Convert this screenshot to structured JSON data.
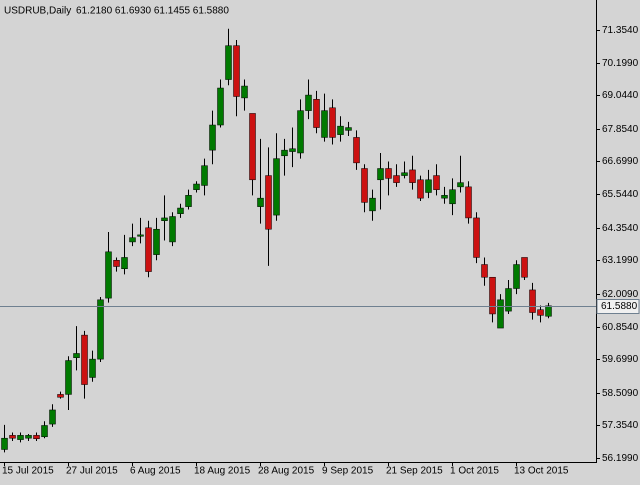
{
  "chart_data": {
    "type": "candlestick",
    "title": "USDRUB,Daily",
    "subtitle": "61.2180 61.6930 61.1455 61.5880",
    "categories": [
      "15 Jul 2015",
      null,
      null,
      null,
      null,
      null,
      null,
      null,
      "27 Jul 2015",
      null,
      null,
      null,
      null,
      null,
      null,
      null,
      "6 Aug 2015",
      null,
      null,
      null,
      null,
      null,
      null,
      null,
      "18 Aug 2015",
      null,
      null,
      null,
      null,
      null,
      null,
      null,
      "28 Aug 2015",
      null,
      null,
      null,
      null,
      null,
      null,
      null,
      "9 Sep 2015",
      null,
      null,
      null,
      null,
      null,
      null,
      null,
      "21 Sep 2015",
      null,
      null,
      null,
      null,
      null,
      null,
      null,
      "1 Oct 2015",
      null,
      null,
      null,
      null,
      null,
      null,
      null,
      "13 Oct 2015",
      null,
      null,
      null,
      null
    ],
    "open": [
      56.5,
      57.0,
      56.85,
      56.9,
      57.0,
      56.95,
      57.4,
      58.45,
      58.45,
      59.75,
      60.55,
      59.05,
      59.7,
      61.86,
      63.2,
      62.9,
      63.85,
      64.05,
      64.35,
      63.4,
      64.6,
      63.85,
      64.85,
      65.1,
      65.7,
      65.85,
      67.1,
      67.99,
      69.6,
      70.8,
      68.95,
      68.4,
      65.1,
      66.2,
      64.8,
      66.9,
      67.05,
      67.0,
      68.5,
      68.9,
      67.55,
      68.6,
      67.65,
      67.8,
      67.55,
      66.45,
      64.95,
      66.05,
      66.45,
      66.2,
      66.2,
      66.4,
      66.05,
      65.6,
      66.2,
      65.4,
      65.2,
      65.8,
      65.8,
      64.7,
      63.05,
      62.6,
      60.8,
      61.4,
      62.2,
      63.3,
      62.15,
      61.45,
      61.218
    ],
    "high": [
      57.37,
      57.1,
      57.1,
      57.05,
      57.1,
      57.5,
      58.1,
      58.55,
      59.8,
      60.87,
      60.7,
      60.0,
      61.9,
      64.2,
      63.3,
      64.1,
      64.5,
      64.7,
      64.6,
      64.7,
      65.5,
      64.9,
      65.2,
      65.7,
      66.0,
      66.8,
      68.5,
      69.6,
      71.4,
      71.0,
      69.6,
      68.4,
      67.5,
      67.2,
      67.7,
      67.5,
      67.9,
      68.9,
      69.6,
      69.2,
      69.1,
      68.9,
      68.3,
      68.1,
      67.8,
      66.6,
      65.7,
      67.0,
      66.7,
      66.6,
      66.7,
      66.9,
      66.2,
      66.4,
      66.6,
      65.8,
      66.1,
      66.9,
      66.0,
      64.9,
      63.3,
      62.6,
      62.0,
      62.5,
      63.2,
      63.3,
      62.4,
      61.6,
      61.693
    ],
    "low": [
      56.4,
      56.8,
      56.75,
      56.8,
      56.8,
      56.9,
      57.3,
      58.3,
      57.9,
      59.3,
      58.3,
      58.9,
      59.6,
      61.7,
      62.8,
      62.7,
      63.7,
      63.8,
      62.6,
      63.2,
      63.9,
      63.7,
      64.7,
      65.0,
      65.6,
      65.5,
      66.6,
      67.9,
      69.4,
      68.3,
      68.5,
      65.5,
      64.5,
      63.0,
      64.6,
      66.2,
      66.5,
      66.8,
      68.2,
      67.7,
      67.4,
      67.3,
      67.4,
      67.6,
      66.4,
      64.9,
      64.6,
      65.0,
      65.5,
      65.8,
      66.1,
      65.7,
      65.3,
      65.4,
      65.5,
      65.2,
      64.8,
      65.6,
      64.5,
      63.1,
      62.3,
      61.0,
      60.8,
      61.3,
      62.0,
      62.5,
      61.1,
      61.0,
      61.1455
    ],
    "close": [
      56.9,
      56.9,
      57.0,
      57.0,
      56.88,
      57.35,
      57.9,
      58.35,
      59.65,
      59.9,
      58.8,
      59.7,
      61.8,
      63.5,
      62.98,
      63.3,
      64.0,
      64.1,
      62.8,
      64.3,
      64.7,
      64.75,
      65.05,
      65.5,
      65.9,
      66.55,
      67.99,
      69.3,
      70.8,
      69.0,
      69.37,
      66.05,
      65.4,
      64.3,
      66.8,
      67.1,
      67.15,
      68.5,
      69.05,
      67.9,
      68.5,
      67.55,
      67.95,
      67.9,
      66.65,
      65.25,
      65.4,
      66.45,
      66.1,
      65.95,
      66.3,
      65.95,
      65.4,
      66.05,
      65.7,
      65.5,
      65.7,
      65.95,
      64.7,
      63.3,
      62.6,
      61.3,
      61.8,
      62.2,
      63.05,
      62.6,
      61.35,
      61.25,
      61.588
    ],
    "up_color": "#007a00",
    "down_color": "#cc1111",
    "ylim": [
      56.057,
      72.417
    ],
    "yticks": [
      {
        "value": 56.199,
        "label": "56.1990"
      },
      {
        "value": 57.354,
        "label": "57.3540"
      },
      {
        "value": 58.509,
        "label": "58.5090"
      },
      {
        "value": 59.699,
        "label": "59.6990"
      },
      {
        "value": 60.854,
        "label": "60.8540"
      },
      {
        "value": 62.009,
        "label": "62.0090"
      },
      {
        "value": 63.199,
        "label": "63.1990"
      },
      {
        "value": 64.354,
        "label": "64.3540"
      },
      {
        "value": 65.544,
        "label": "65.5440"
      },
      {
        "value": 66.699,
        "label": "66.6990"
      },
      {
        "value": 67.854,
        "label": "67.8540"
      },
      {
        "value": 69.044,
        "label": "69.0440"
      },
      {
        "value": 70.199,
        "label": "70.1990"
      },
      {
        "value": 71.354,
        "label": "71.3540"
      }
    ],
    "last_price": {
      "value": 61.588,
      "label": "61.5880"
    },
    "grid": false
  }
}
